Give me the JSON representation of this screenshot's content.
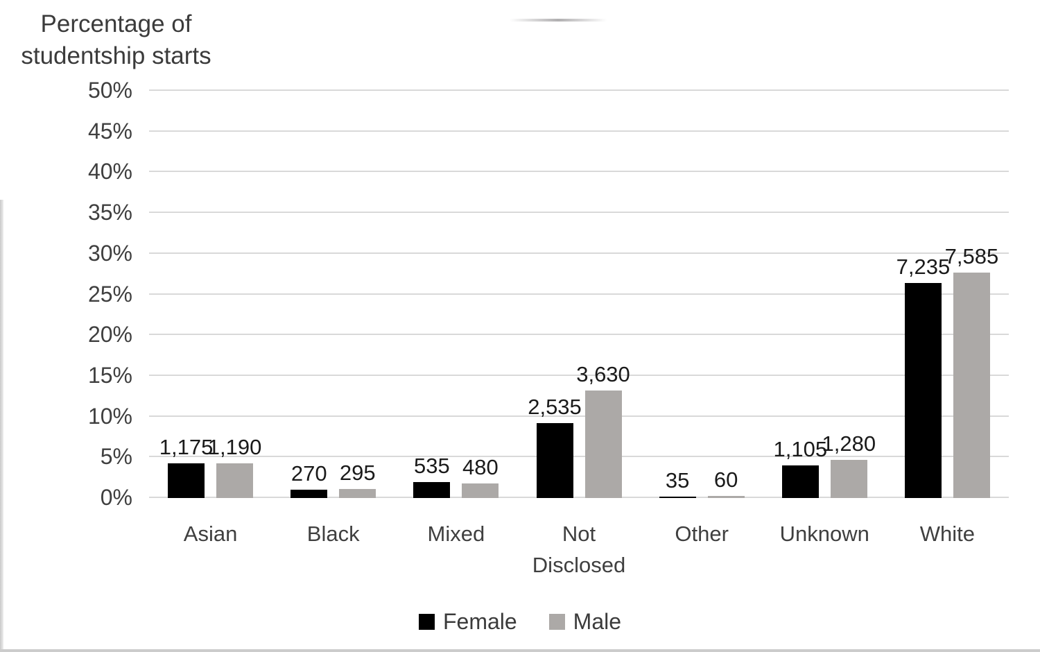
{
  "title": {
    "line1": "Percentage of",
    "line2": "studentship starts"
  },
  "chart_data": {
    "type": "bar",
    "title": "Percentage of studentship starts",
    "xlabel": "",
    "ylabel": "Percentage of studentship starts",
    "categories": [
      "Asian",
      "Black",
      "Mixed",
      "Not Disclosed",
      "Other",
      "Unknown",
      "White"
    ],
    "series": [
      {
        "name": "Female",
        "color": "#000000",
        "count_labels": [
          "1,175",
          "270",
          "535",
          "2,535",
          "35",
          "1,105",
          "7,235"
        ],
        "values_pct": [
          4.3,
          1.0,
          2.0,
          9.2,
          0.13,
          4.0,
          26.4
        ]
      },
      {
        "name": "Male",
        "color": "#aca9a7",
        "count_labels": [
          "1,190",
          "295",
          "480",
          "3,630",
          "60",
          "1,280",
          "7,585"
        ],
        "values_pct": [
          4.3,
          1.1,
          1.8,
          13.2,
          0.22,
          4.7,
          27.7
        ]
      }
    ],
    "yticks": [
      "0%",
      "5%",
      "10%",
      "15%",
      "20%",
      "25%",
      "30%",
      "35%",
      "40%",
      "45%",
      "50%"
    ],
    "ylim": [
      0,
      50
    ],
    "grid": true,
    "gridline_color": "#d9d9d9",
    "legend_position": "bottom"
  }
}
